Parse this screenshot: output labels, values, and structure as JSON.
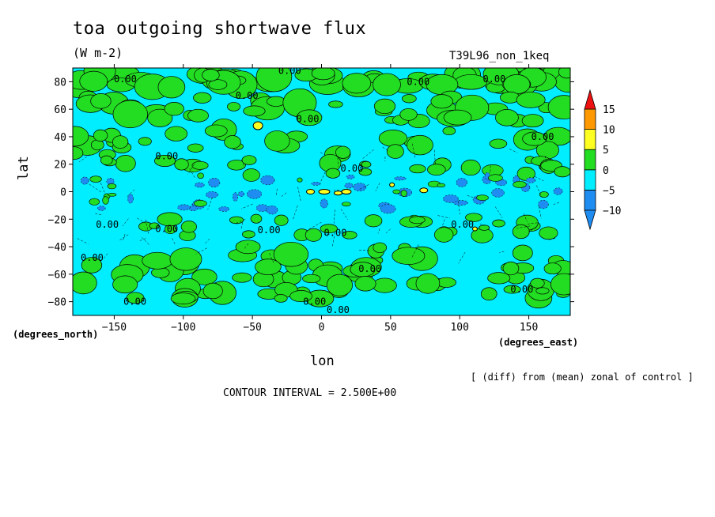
{
  "header": {
    "title": "toa outgoing shortwave flux",
    "units": "(W m-2)",
    "run_id": "T39L96_non_1keq"
  },
  "footer": {
    "diff_note": "[ (diff) from (mean) zonal of control ]",
    "contour_interval": "CONTOUR INTERVAL = 2.500E+00"
  },
  "axes": {
    "ylabel": "lat",
    "xlabel": "lon",
    "y_unit": "(degrees_north)",
    "x_unit": "(degrees_east)"
  },
  "colors": {
    "lt_neg10": "#1e8cf0",
    "neg10_neg5": "#1e8cf0",
    "neg5_0": "#00eeff",
    "0_5": "#22dd22",
    "5_10": "#ffff22",
    "10_15": "#ff9900",
    "gt_15": "#ee1111"
  },
  "chart_data": {
    "type": "heatmap",
    "title": "toa outgoing shortwave flux",
    "units": "(W m-2)",
    "xlabel": "lon",
    "ylabel": "lat",
    "xlim": [
      -180,
      180
    ],
    "ylim": [
      -90,
      90
    ],
    "xticks": [
      -150,
      -100,
      -50,
      0,
      50,
      100,
      150
    ],
    "yticks": [
      -80,
      -60,
      -40,
      -20,
      0,
      20,
      40,
      60,
      80
    ],
    "colorbar": {
      "levels": [
        -10,
        -5,
        0,
        5,
        10,
        15
      ],
      "labels": [
        "15",
        "10",
        "5",
        "0",
        "-5",
        "-10"
      ],
      "bins": [
        {
          "range": "<-10",
          "color": "#1e8cf0"
        },
        {
          "range": "-10 to -5",
          "color": "#1e8cf0"
        },
        {
          "range": "-5 to 0",
          "color": "#00eeff"
        },
        {
          "range": "0 to 5",
          "color": "#22dd22"
        },
        {
          "range": "5 to 10",
          "color": "#ffff22"
        },
        {
          "range": "10 to 15",
          "color": "#ff9900"
        },
        {
          "range": ">15",
          "color": "#ee1111"
        }
      ]
    },
    "contour_interval": 2.5,
    "contour_labels": [
      {
        "lon": -142,
        "lat": 82,
        "text": "0.00"
      },
      {
        "lon": -23,
        "lat": 88,
        "text": "0.00"
      },
      {
        "lon": 70,
        "lat": 80,
        "text": "0.00"
      },
      {
        "lon": 125,
        "lat": 82,
        "text": "0.00"
      },
      {
        "lon": -54,
        "lat": 70,
        "text": "0.00"
      },
      {
        "lon": -10,
        "lat": 53,
        "text": "0.00"
      },
      {
        "lon": 160,
        "lat": 40,
        "text": "0.00"
      },
      {
        "lon": -112,
        "lat": 26,
        "text": "0.00"
      },
      {
        "lon": 22,
        "lat": 17,
        "text": "0.00"
      },
      {
        "lon": -155,
        "lat": -24,
        "text": "0.00"
      },
      {
        "lon": -112,
        "lat": -27,
        "text": "0.00"
      },
      {
        "lon": -38,
        "lat": -28,
        "text": "0.00"
      },
      {
        "lon": 10,
        "lat": -30,
        "text": "0.00"
      },
      {
        "lon": 102,
        "lat": -24,
        "text": "0.00"
      },
      {
        "lon": -166,
        "lat": -48,
        "text": "0.00"
      },
      {
        "lon": 35,
        "lat": -56,
        "text": "0.00"
      },
      {
        "lon": -135,
        "lat": -80,
        "text": "0.00"
      },
      {
        "lon": -5,
        "lat": -80,
        "text": "0.00"
      },
      {
        "lon": 12,
        "lat": -86,
        "text": "0.00"
      },
      {
        "lon": 145,
        "lat": -71,
        "text": "0.00"
      }
    ],
    "grid": false
  }
}
